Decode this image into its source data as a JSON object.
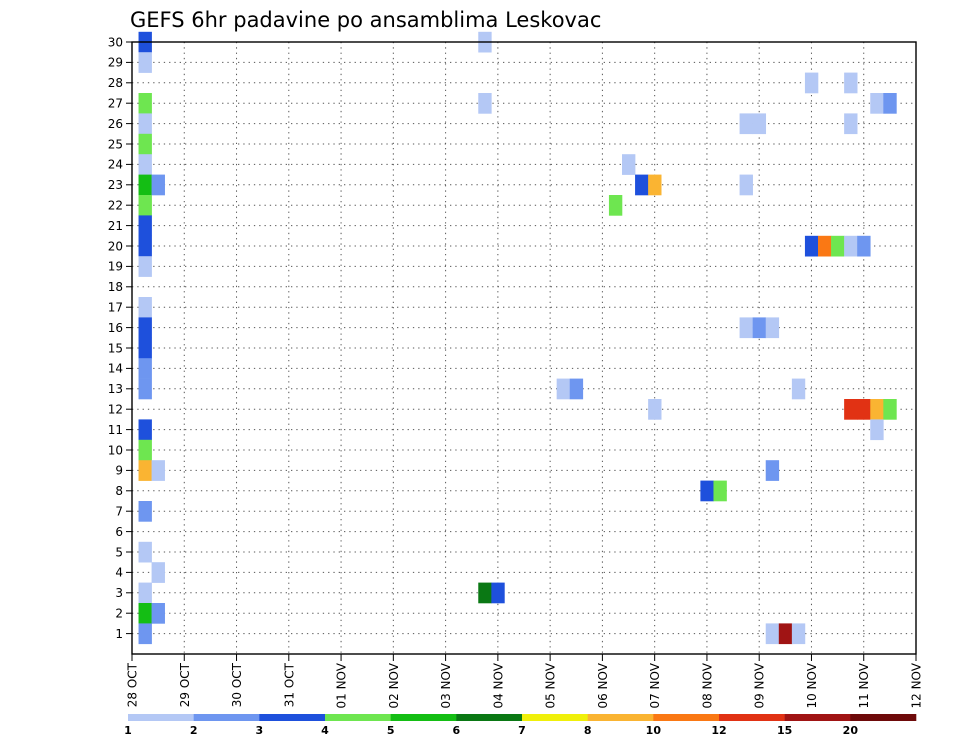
{
  "chart_data": {
    "type": "heatmap",
    "title": "GEFS 6hr padavine po ansamblima Leskovac",
    "xlabel": "",
    "ylabel": "",
    "x_tick_labels": [
      "28 OCT",
      "29 OCT",
      "30 OCT",
      "31 OCT",
      "01 NOV",
      "02 NOV",
      "03 NOV",
      "04 NOV",
      "05 NOV",
      "06 NOV",
      "07 NOV",
      "08 NOV",
      "09 NOV",
      "10 NOV",
      "11 NOV",
      "12 NOV"
    ],
    "x_unit": "6-hour step from 28 OCT 00Z",
    "xlim": [
      0,
      60
    ],
    "ylim": [
      0,
      30
    ],
    "y_ticks": [
      1,
      2,
      3,
      4,
      5,
      6,
      7,
      8,
      9,
      10,
      11,
      12,
      13,
      14,
      15,
      16,
      17,
      18,
      19,
      20,
      21,
      22,
      23,
      24,
      25,
      26,
      27,
      28,
      29,
      30
    ],
    "grid": true,
    "legend": {
      "placement": "bottom",
      "colors": [
        "#b4c8f5",
        "#6e96f0",
        "#1e50dc",
        "#6ee650",
        "#14be14",
        "#0a7814",
        "#f0f00a",
        "#fab432",
        "#fa7814",
        "#e13214",
        "#a01414",
        "#6e0a0a"
      ],
      "labels": [
        "1",
        "2",
        "3",
        "4",
        "5",
        "6",
        "7",
        "8",
        "10",
        "12",
        "15",
        "20"
      ]
    },
    "points": [
      {
        "member": 30,
        "step": 1,
        "class": 2
      },
      {
        "member": 29,
        "step": 1,
        "class": 0
      },
      {
        "member": 27,
        "step": 1,
        "class": 3
      },
      {
        "member": 26,
        "step": 1,
        "class": 0
      },
      {
        "member": 25,
        "step": 1,
        "class": 3
      },
      {
        "member": 24,
        "step": 1,
        "class": 0
      },
      {
        "member": 23,
        "step": 1,
        "class": 4
      },
      {
        "member": 22,
        "step": 1,
        "class": 3
      },
      {
        "member": 21,
        "step": 1,
        "class": 2
      },
      {
        "member": 20,
        "step": 1,
        "class": 2
      },
      {
        "member": 19,
        "step": 1,
        "class": 0
      },
      {
        "member": 17,
        "step": 1,
        "class": 0
      },
      {
        "member": 16,
        "step": 1,
        "class": 2
      },
      {
        "member": 15,
        "step": 1,
        "class": 2
      },
      {
        "member": 14,
        "step": 1,
        "class": 1
      },
      {
        "member": 13,
        "step": 1,
        "class": 1
      },
      {
        "member": 11,
        "step": 1,
        "class": 2
      },
      {
        "member": 10,
        "step": 1,
        "class": 3
      },
      {
        "member": 9,
        "step": 1,
        "class": 7
      },
      {
        "member": 7,
        "step": 1,
        "class": 1
      },
      {
        "member": 5,
        "step": 1,
        "class": 0
      },
      {
        "member": 3,
        "step": 1,
        "class": 0
      },
      {
        "member": 2,
        "step": 1,
        "class": 4
      },
      {
        "member": 1,
        "step": 1,
        "class": 1
      },
      {
        "member": 23,
        "step": 2,
        "class": 1
      },
      {
        "member": 9,
        "step": 2,
        "class": 0
      },
      {
        "member": 4,
        "step": 2,
        "class": 0
      },
      {
        "member": 2,
        "step": 2,
        "class": 1
      },
      {
        "member": 30,
        "step": 27,
        "class": 0
      },
      {
        "member": 27,
        "step": 27,
        "class": 0
      },
      {
        "member": 3,
        "step": 27,
        "class": 5
      },
      {
        "member": 3,
        "step": 28,
        "class": 2
      },
      {
        "member": 13,
        "step": 33,
        "class": 0
      },
      {
        "member": 13,
        "step": 34,
        "class": 1
      },
      {
        "member": 22,
        "step": 37,
        "class": 3
      },
      {
        "member": 24,
        "step": 38,
        "class": 0
      },
      {
        "member": 23,
        "step": 39,
        "class": 2
      },
      {
        "member": 23,
        "step": 40,
        "class": 7
      },
      {
        "member": 12,
        "step": 40,
        "class": 0
      },
      {
        "member": 8,
        "step": 44,
        "class": 2
      },
      {
        "member": 8,
        "step": 45,
        "class": 3
      },
      {
        "member": 26,
        "step": 47,
        "class": 0
      },
      {
        "member": 26,
        "step": 48,
        "class": 0
      },
      {
        "member": 23,
        "step": 47,
        "class": 0
      },
      {
        "member": 16,
        "step": 47,
        "class": 0
      },
      {
        "member": 16,
        "step": 48,
        "class": 1
      },
      {
        "member": 16,
        "step": 49,
        "class": 0
      },
      {
        "member": 9,
        "step": 49,
        "class": 1
      },
      {
        "member": 1,
        "step": 49,
        "class": 0
      },
      {
        "member": 1,
        "step": 50,
        "class": 10
      },
      {
        "member": 1,
        "step": 51,
        "class": 0
      },
      {
        "member": 13,
        "step": 51,
        "class": 0
      },
      {
        "member": 28,
        "step": 52,
        "class": 0
      },
      {
        "member": 20,
        "step": 52,
        "class": 2
      },
      {
        "member": 20,
        "step": 53,
        "class": 8
      },
      {
        "member": 20,
        "step": 54,
        "class": 3
      },
      {
        "member": 28,
        "step": 55,
        "class": 0
      },
      {
        "member": 26,
        "step": 55,
        "class": 0
      },
      {
        "member": 20,
        "step": 55,
        "class": 0
      },
      {
        "member": 20,
        "step": 56,
        "class": 1
      },
      {
        "member": 12,
        "step": 55,
        "class": 9
      },
      {
        "member": 12,
        "step": 56,
        "class": 9
      },
      {
        "member": 12,
        "step": 57,
        "class": 7
      },
      {
        "member": 12,
        "step": 58,
        "class": 3
      },
      {
        "member": 11,
        "step": 57,
        "class": 0
      },
      {
        "member": 27,
        "step": 57,
        "class": 0
      },
      {
        "member": 27,
        "step": 58,
        "class": 1
      }
    ]
  }
}
